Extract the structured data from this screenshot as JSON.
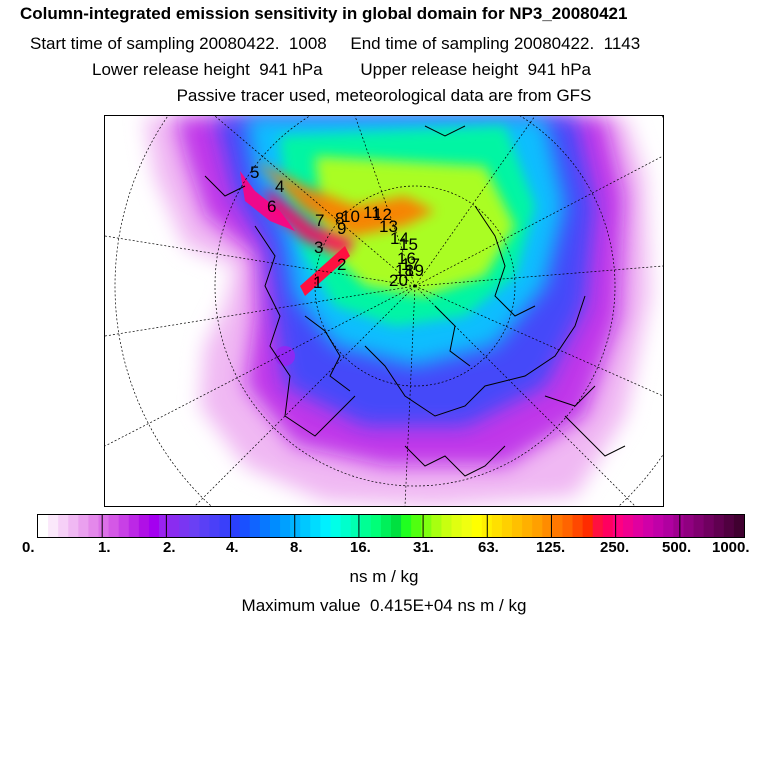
{
  "header": {
    "title": "Column-integrated emission sensitivity in global domain for NP3_20080421",
    "line2": "Start time of sampling 20080422.  1008     End time of sampling 20080422.  1143",
    "line3": "Lower release height  941 hPa        Upper release height  941 hPa",
    "line4": "Passive tracer used, meteorological data are from GFS"
  },
  "map": {
    "projection": "polar stereographic (north)",
    "trajectory_labels": [
      "1",
      "2",
      "3",
      "4",
      "5",
      "6",
      "7",
      "8",
      "9",
      "10",
      "11",
      "12",
      "13",
      "14",
      "15",
      "16",
      "17",
      "18",
      "19",
      "20"
    ]
  },
  "colorbar": {
    "tick_labels": [
      "0.",
      "1.",
      "2.",
      "4.",
      "8.",
      "16.",
      "31.",
      "63.",
      "125.",
      "250.",
      "500.",
      "1000."
    ],
    "colors": [
      "#ffffff",
      "#fbe8fb",
      "#f6d0f7",
      "#f0b8f3",
      "#eaa0ef",
      "#e488eb",
      "#dc70e8",
      "#d458e6",
      "#c840e6",
      "#bc28e6",
      "#b010e6",
      "#a400f0",
      "#9a22f0",
      "#8a2cf0",
      "#7a36f2",
      "#6a40f4",
      "#5a40f6",
      "#4a40f8",
      "#3a40fa",
      "#2a40fc",
      "#1a50ff",
      "#1064ff",
      "#0878ff",
      "#008cff",
      "#00a0ff",
      "#00b4ff",
      "#00c8ff",
      "#00dcff",
      "#00f0ff",
      "#00ffe8",
      "#00ffcc",
      "#00ffb0",
      "#00ff94",
      "#00ff78",
      "#00f05a",
      "#00e040",
      "#20ff20",
      "#50ff10",
      "#80ff10",
      "#a8ff10",
      "#c8ff10",
      "#e0ff10",
      "#f0ff10",
      "#ffff00",
      "#fff000",
      "#ffe000",
      "#ffd000",
      "#ffc000",
      "#ffb000",
      "#ffa000",
      "#ff8c00",
      "#ff7800",
      "#ff6400",
      "#ff4800",
      "#ff2c00",
      "#ff1040",
      "#ff0060",
      "#ff0080",
      "#f00090",
      "#e000a0",
      "#d000a8",
      "#c000a8",
      "#b000a0",
      "#a00090",
      "#900080",
      "#800070",
      "#700060",
      "#600050",
      "#500040",
      "#400030"
    ],
    "units": "ns m / kg"
  },
  "footer": {
    "maximum": "Maximum value  0.415E+04 ns m / kg"
  }
}
